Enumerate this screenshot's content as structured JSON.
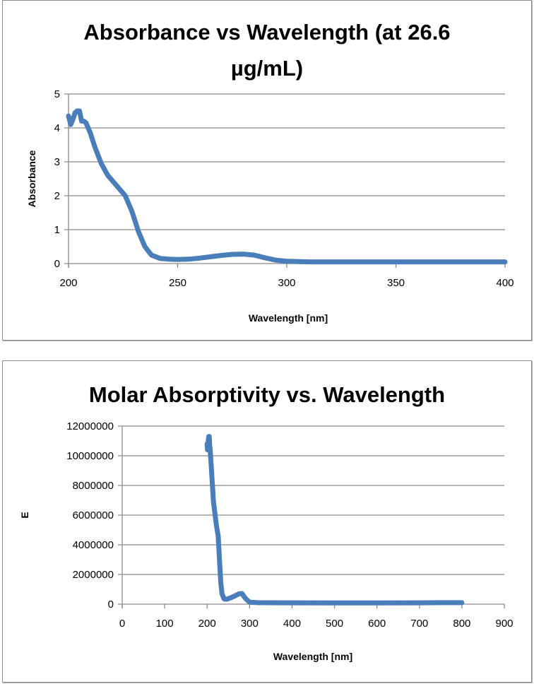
{
  "chart_data": [
    {
      "type": "line",
      "title_line1": "Absorbance vs Wavelength (at 26.6",
      "title_line2": "µg/mL)",
      "xlabel": "Wavelength [nm]",
      "ylabel": "Absorbance",
      "xlim": [
        200,
        400
      ],
      "ylim": [
        0,
        5
      ],
      "xticks": [
        200,
        250,
        300,
        350,
        400
      ],
      "yticks": [
        0,
        1,
        2,
        3,
        4,
        5
      ],
      "grid": "horizontal",
      "legend": "none",
      "series_color": "#4a7ebb",
      "series": [
        {
          "name": "Absorbance",
          "x": [
            200,
            201,
            202,
            203,
            204,
            205,
            206,
            207,
            208,
            210,
            212,
            215,
            218,
            222,
            226,
            229,
            232,
            235,
            238,
            242,
            246,
            250,
            255,
            260,
            265,
            270,
            275,
            280,
            285,
            290,
            295,
            300,
            305,
            310,
            320,
            340,
            360,
            380,
            400
          ],
          "y": [
            4.35,
            4.1,
            4.25,
            4.45,
            4.5,
            4.5,
            4.2,
            4.2,
            4.15,
            3.85,
            3.45,
            2.95,
            2.6,
            2.3,
            2.0,
            1.55,
            0.95,
            0.5,
            0.25,
            0.15,
            0.13,
            0.12,
            0.13,
            0.16,
            0.2,
            0.24,
            0.27,
            0.28,
            0.25,
            0.17,
            0.1,
            0.07,
            0.06,
            0.05,
            0.05,
            0.05,
            0.05,
            0.05,
            0.05
          ]
        }
      ]
    },
    {
      "type": "line",
      "title": "Molar Absorptivity vs. Wavelength",
      "xlabel": "Wavelength [nm]",
      "ylabel": "E",
      "xlim": [
        0,
        900
      ],
      "ylim": [
        0,
        12000000
      ],
      "xticks": [
        0,
        100,
        200,
        300,
        400,
        500,
        600,
        700,
        800,
        900
      ],
      "yticks": [
        0,
        2000000,
        4000000,
        6000000,
        8000000,
        10000000,
        12000000
      ],
      "grid": "horizontal",
      "legend": "none",
      "series_color": "#4a7ebb",
      "series": [
        {
          "name": "E",
          "x": [
            200,
            201,
            202,
            203,
            204,
            205,
            206,
            207,
            210,
            215,
            222,
            226,
            229,
            232,
            235,
            240,
            246,
            255,
            265,
            275,
            282,
            290,
            300,
            320,
            400,
            500,
            600,
            700,
            750,
            800
          ],
          "y": [
            10800000,
            10400000,
            10600000,
            11100000,
            11300000,
            11300000,
            10700000,
            10500000,
            9200000,
            6900000,
            5300000,
            4600000,
            3000000,
            1500000,
            700000,
            350000,
            330000,
            420000,
            550000,
            700000,
            720000,
            400000,
            130000,
            100000,
            90000,
            80000,
            80000,
            90000,
            100000,
            100000
          ]
        }
      ]
    }
  ]
}
